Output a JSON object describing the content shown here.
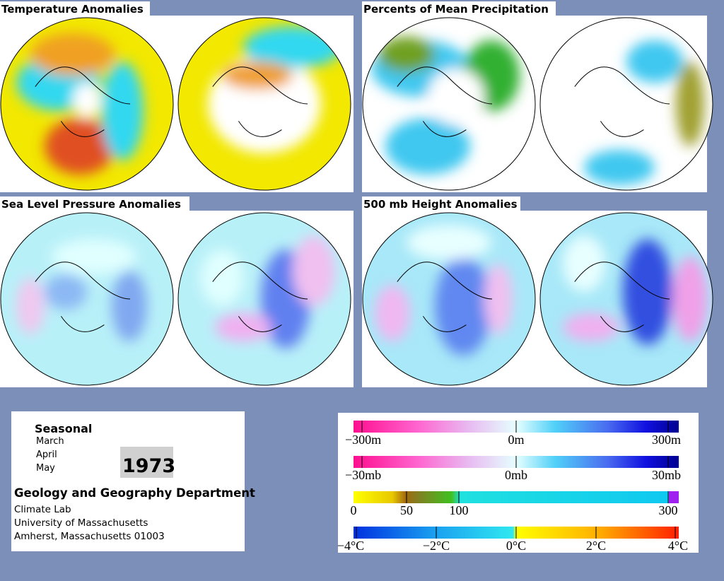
{
  "panels": [
    {
      "title": "Temperature Anomalies"
    },
    {
      "title": "Percents of Mean Precipitation"
    },
    {
      "title": "Sea Level Pressure Anomalies"
    },
    {
      "title": "500 mb Height Anomalies"
    }
  ],
  "info": {
    "season": "Seasonal",
    "months": [
      "March",
      "April",
      "May"
    ],
    "year": "1973",
    "department": "Geology and Geography Department",
    "lines": [
      "Climate Lab",
      "University of Massachusetts",
      "Amherst, Massachusetts 01003"
    ]
  },
  "legend": {
    "scales": [
      {
        "labels": [
          "−300m",
          "0m",
          "300m"
        ]
      },
      {
        "labels": [
          "−30mb",
          "0mb",
          "30mb"
        ]
      },
      {
        "labels": [
          "0",
          "50",
          "100",
          "300"
        ]
      },
      {
        "labels": [
          "−4°C",
          "−2°C",
          "0°C",
          "2°C",
          "4°C"
        ]
      }
    ]
  }
}
